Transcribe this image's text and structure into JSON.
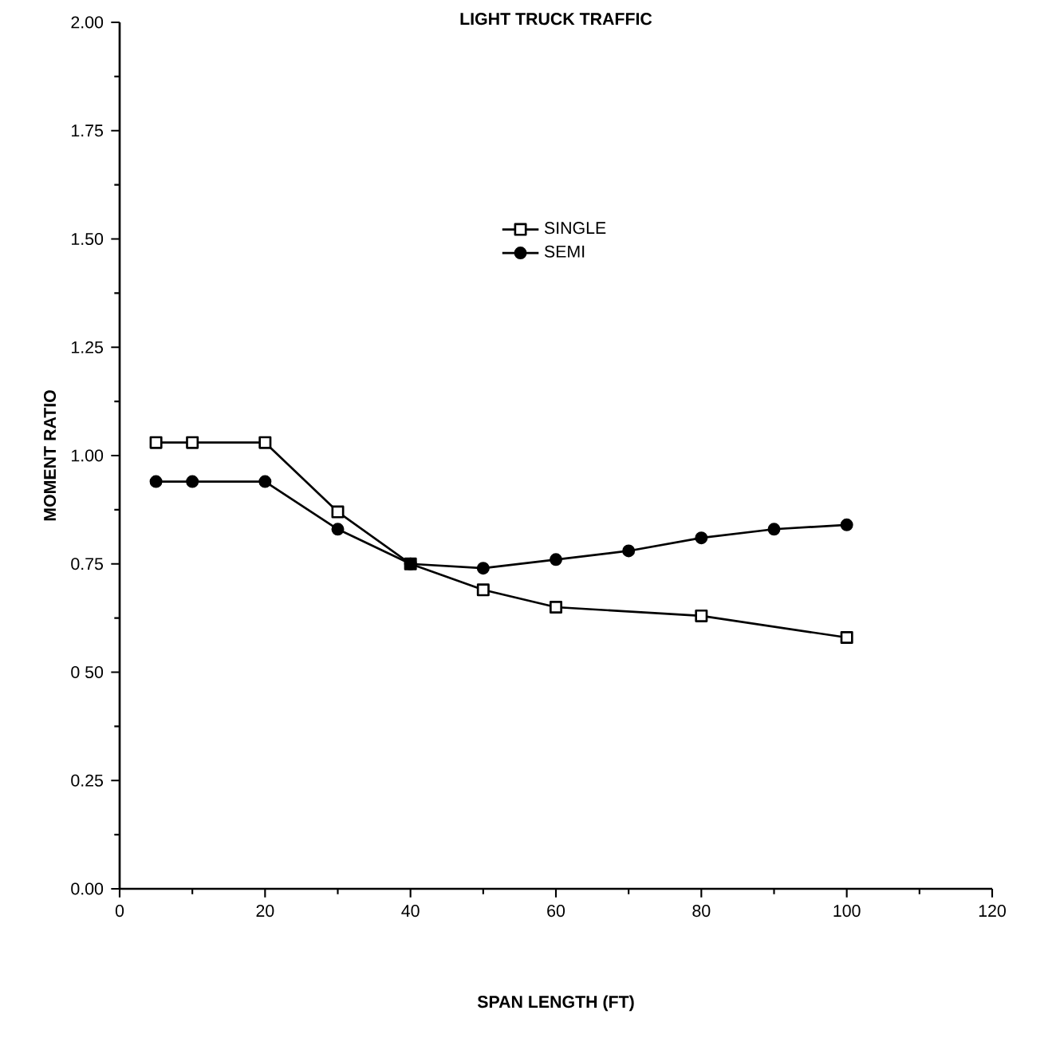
{
  "chart_data": {
    "type": "line",
    "title": "LIGHT TRUCK TRAFFIC",
    "xlabel": "SPAN LENGTH (FT)",
    "ylabel": "MOMENT RATIO",
    "xlim": [
      0,
      120
    ],
    "ylim": [
      0,
      2
    ],
    "xticks": [
      0,
      20,
      40,
      60,
      80,
      100,
      120
    ],
    "yticks": [
      {
        "value": 0,
        "label": "0.00"
      },
      {
        "value": 0.25,
        "label": "0.25"
      },
      {
        "value": 0.5,
        "label": "0 50"
      },
      {
        "value": 0.75,
        "label": "0.75"
      },
      {
        "value": 1,
        "label": "1.00"
      },
      {
        "value": 1.25,
        "label": "1.25"
      },
      {
        "value": 1.5,
        "label": "1.50"
      },
      {
        "value": 1.75,
        "label": "1.75"
      },
      {
        "value": 2,
        "label": "2.00"
      }
    ],
    "legend": "top",
    "grid": false,
    "series": [
      {
        "name": "SINGLE",
        "color": "#000000",
        "marker": "square",
        "x": [
          5,
          10,
          20,
          30,
          40,
          50,
          60,
          80,
          100
        ],
        "values": [
          1.03,
          1.03,
          1.03,
          0.87,
          0.75,
          0.69,
          0.65,
          0.63,
          0.58
        ]
      },
      {
        "name": "SEMI",
        "color": "#000000",
        "marker": "circle",
        "x": [
          5,
          10,
          20,
          30,
          40,
          50,
          60,
          70,
          80,
          90,
          100
        ],
        "values": [
          0.94,
          0.94,
          0.94,
          0.83,
          0.75,
          0.74,
          0.76,
          0.78,
          0.81,
          0.83,
          0.84
        ]
      }
    ]
  }
}
